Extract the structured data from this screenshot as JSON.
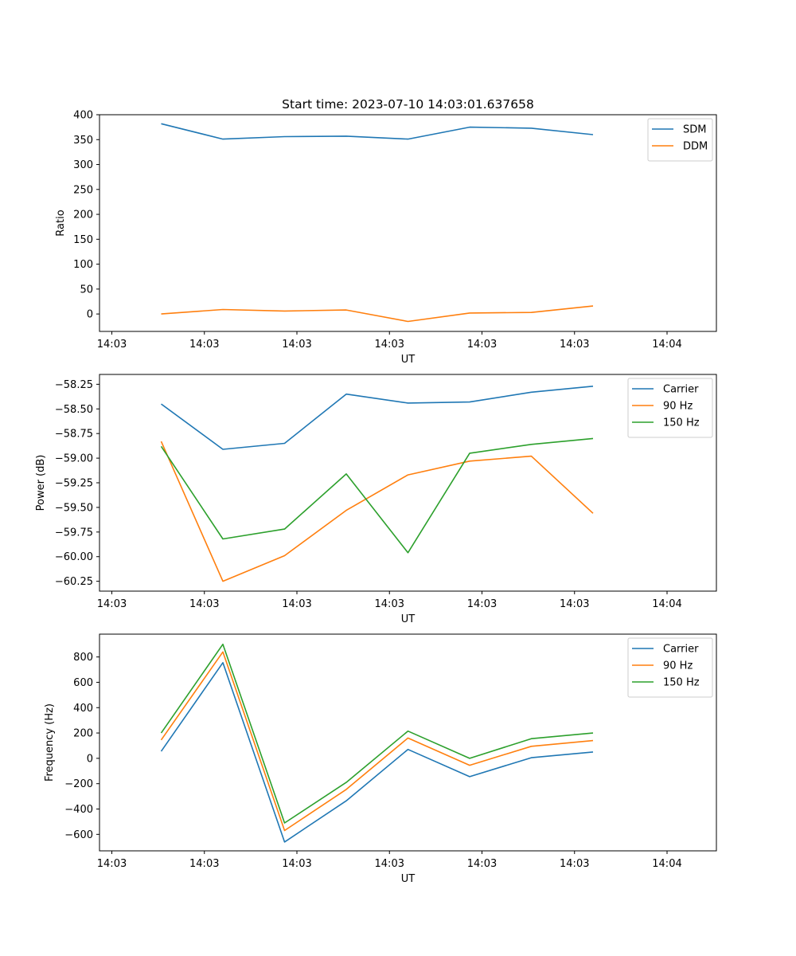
{
  "figure_title": "Start time: 2023-07-10 14:03:01.637658",
  "chart_data": [
    {
      "type": "line",
      "title": "Start time: 2023-07-10 14:03:01.637658",
      "xlabel": "UT",
      "ylabel": "Ratio",
      "x": [
        1,
        2,
        3,
        4,
        5,
        6,
        7,
        8
      ],
      "xlim": [
        0,
        10
      ],
      "x_ticks": [
        0.2,
        1.7,
        3.2,
        4.7,
        6.2,
        7.7,
        9.2
      ],
      "x_tick_labels": [
        "14:03",
        "14:03",
        "14:03",
        "14:03",
        "14:03",
        "14:03",
        "14:04"
      ],
      "ylim": [
        -35,
        400
      ],
      "y_ticks": [
        0,
        50,
        100,
        150,
        200,
        250,
        300,
        350,
        400
      ],
      "y_tick_labels": [
        "0",
        "50",
        "100",
        "150",
        "200",
        "250",
        "300",
        "350",
        "400"
      ],
      "legend_position": "top-right",
      "series": [
        {
          "name": "SDM",
          "color": "#1f77b4",
          "values": [
            382,
            351,
            356,
            357,
            351,
            375,
            373,
            360
          ]
        },
        {
          "name": "DDM",
          "color": "#ff7f0e",
          "values": [
            0,
            9,
            6,
            8,
            -15,
            2,
            3,
            16
          ]
        }
      ]
    },
    {
      "type": "line",
      "title": "",
      "xlabel": "UT",
      "ylabel": "Power (dB)",
      "x": [
        1,
        2,
        3,
        4,
        5,
        6,
        7,
        8
      ],
      "xlim": [
        0,
        10
      ],
      "x_ticks": [
        0.2,
        1.7,
        3.2,
        4.7,
        6.2,
        7.7,
        9.2
      ],
      "x_tick_labels": [
        "14:03",
        "14:03",
        "14:03",
        "14:03",
        "14:03",
        "14:03",
        "14:04"
      ],
      "ylim": [
        -60.35,
        -58.15
      ],
      "y_ticks": [
        -58.25,
        -58.5,
        -58.75,
        -59.0,
        -59.25,
        -59.5,
        -59.75,
        -60.0,
        -60.25
      ],
      "y_tick_labels": [
        "−58.25",
        "−58.50",
        "−58.75",
        "−59.00",
        "−59.25",
        "−59.50",
        "−59.75",
        "−60.00",
        "−60.25"
      ],
      "legend_position": "top-right",
      "series": [
        {
          "name": "Carrier",
          "color": "#1f77b4",
          "values": [
            -58.45,
            -58.91,
            -58.85,
            -58.35,
            -58.44,
            -58.43,
            -58.33,
            -58.27
          ]
        },
        {
          "name": "90 Hz",
          "color": "#ff7f0e",
          "values": [
            -58.83,
            -60.25,
            -59.99,
            -59.53,
            -59.17,
            -59.03,
            -58.98,
            -59.56
          ]
        },
        {
          "name": "150 Hz",
          "color": "#2ca02c",
          "values": [
            -58.88,
            -59.82,
            -59.72,
            -59.16,
            -59.96,
            -58.95,
            -58.86,
            -58.8
          ]
        }
      ]
    },
    {
      "type": "line",
      "title": "",
      "xlabel": "UT",
      "ylabel": "Frequency (Hz)",
      "x": [
        1,
        2,
        3,
        4,
        5,
        6,
        7,
        8
      ],
      "xlim": [
        0,
        10
      ],
      "x_ticks": [
        0.2,
        1.7,
        3.2,
        4.7,
        6.2,
        7.7,
        9.2
      ],
      "x_tick_labels": [
        "14:03",
        "14:03",
        "14:03",
        "14:03",
        "14:03",
        "14:03",
        "14:04"
      ],
      "ylim": [
        -730,
        980
      ],
      "y_ticks": [
        800,
        600,
        400,
        200,
        0,
        -200,
        -400,
        -600
      ],
      "y_tick_labels": [
        "800",
        "600",
        "400",
        "200",
        "0",
        "−200",
        "−400",
        "−600"
      ],
      "legend_position": "top-right",
      "series": [
        {
          "name": "Carrier",
          "color": "#1f77b4",
          "values": [
            55,
            755,
            -660,
            -335,
            70,
            -145,
            5,
            50
          ]
        },
        {
          "name": "90 Hz",
          "color": "#ff7f0e",
          "values": [
            145,
            840,
            -570,
            -245,
            160,
            -55,
            95,
            140
          ]
        },
        {
          "name": "150 Hz",
          "color": "#2ca02c",
          "values": [
            200,
            900,
            -510,
            -190,
            215,
            0,
            155,
            200
          ]
        }
      ]
    }
  ]
}
